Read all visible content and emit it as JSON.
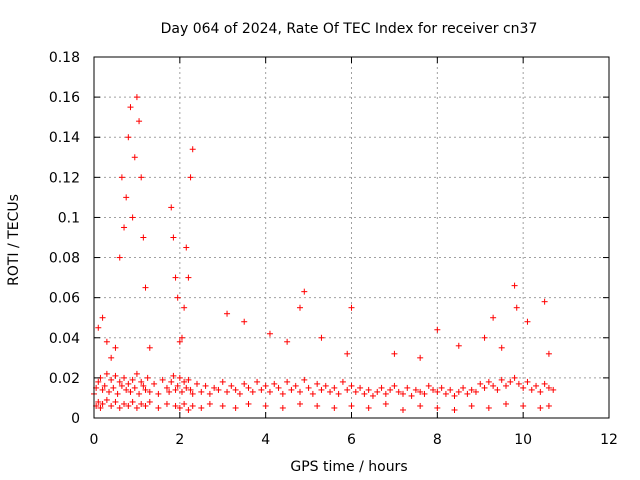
{
  "chart_data": {
    "type": "scatter",
    "title": "Day 064 of 2024, Rate Of TEC Index for receiver cn37",
    "xlabel": "GPS time / hours",
    "ylabel": "ROTI / TECUs",
    "xlim": [
      0,
      12
    ],
    "ylim": [
      0,
      0.18
    ],
    "xticks": [
      "0",
      "2",
      "4",
      "6",
      "8",
      "10",
      "12"
    ],
    "yticks": [
      "0",
      "0.02",
      "0.04",
      "0.06",
      "0.08",
      "0.1",
      "0.12",
      "0.14",
      "0.16",
      "0.18"
    ],
    "grid": true,
    "marker": "+",
    "series": [
      {
        "name": "ROTI",
        "color": "#ff0000",
        "x": [
          0.0,
          0.05,
          0.1,
          0.15,
          0.2,
          0.25,
          0.3,
          0.35,
          0.4,
          0.45,
          0.5,
          0.55,
          0.6,
          0.65,
          0.7,
          0.75,
          0.8,
          0.85,
          0.9,
          0.95,
          1.0,
          1.05,
          1.1,
          1.15,
          1.2,
          1.25,
          1.3,
          1.4,
          1.5,
          1.6,
          1.7,
          1.75,
          1.8,
          1.85,
          1.9,
          1.95,
          2.0,
          2.05,
          2.1,
          2.15,
          2.2,
          2.25,
          2.3,
          2.4,
          2.5,
          2.6,
          2.7,
          2.8,
          2.9,
          3.0,
          3.1,
          3.2,
          3.3,
          3.4,
          3.5,
          3.6,
          3.7,
          3.8,
          3.9,
          4.0,
          4.1,
          4.2,
          4.3,
          4.4,
          4.5,
          4.6,
          4.7,
          4.8,
          4.9,
          5.0,
          5.1,
          5.2,
          5.3,
          5.4,
          5.5,
          5.6,
          5.7,
          5.8,
          5.9,
          6.0,
          6.1,
          6.2,
          6.3,
          6.4,
          6.5,
          6.6,
          6.7,
          6.8,
          6.9,
          7.0,
          7.1,
          7.2,
          7.3,
          7.4,
          7.5,
          7.6,
          7.7,
          7.8,
          7.9,
          8.0,
          8.1,
          8.2,
          8.3,
          8.4,
          8.5,
          8.6,
          8.7,
          8.8,
          8.9,
          9.0,
          9.1,
          9.2,
          9.3,
          9.4,
          9.5,
          9.6,
          9.7,
          9.8,
          9.9,
          10.0,
          10.1,
          10.2,
          10.3,
          10.4,
          10.5,
          10.6,
          10.7,
          0.05,
          0.1,
          0.15,
          0.2,
          0.3,
          0.4,
          0.5,
          0.6,
          0.7,
          0.8,
          0.9,
          1.0,
          1.1,
          1.2,
          1.3,
          1.5,
          1.7,
          1.9,
          2.0,
          2.1,
          2.2,
          2.3,
          2.5,
          2.7,
          3.0,
          3.3,
          3.6,
          4.0,
          4.4,
          4.8,
          5.2,
          5.6,
          6.0,
          6.4,
          6.8,
          7.2,
          7.6,
          8.0,
          8.4,
          8.8,
          9.2,
          9.6,
          10.0,
          10.4,
          10.6,
          0.1,
          0.2,
          0.3,
          0.4,
          0.5,
          0.6,
          0.65,
          0.7,
          0.75,
          0.8,
          0.85,
          0.9,
          0.95,
          1.0,
          1.05,
          1.1,
          1.15,
          1.2,
          1.3,
          1.8,
          1.85,
          1.9,
          1.95,
          2.0,
          2.05,
          2.1,
          2.15,
          2.2,
          2.25,
          2.3,
          3.1,
          3.5,
          4.1,
          4.5,
          4.8,
          4.9,
          5.3,
          5.9,
          6.0,
          7.0,
          7.6,
          8.0,
          8.5,
          9.1,
          9.3,
          9.5,
          9.8,
          9.85,
          10.1,
          10.5,
          10.6
        ],
        "y": [
          0.012,
          0.015,
          0.018,
          0.02,
          0.014,
          0.016,
          0.022,
          0.013,
          0.019,
          0.015,
          0.021,
          0.012,
          0.018,
          0.016,
          0.02,
          0.014,
          0.017,
          0.013,
          0.019,
          0.015,
          0.022,
          0.012,
          0.018,
          0.016,
          0.014,
          0.02,
          0.013,
          0.017,
          0.012,
          0.019,
          0.015,
          0.013,
          0.018,
          0.021,
          0.014,
          0.016,
          0.02,
          0.013,
          0.018,
          0.015,
          0.019,
          0.014,
          0.012,
          0.017,
          0.013,
          0.016,
          0.012,
          0.015,
          0.014,
          0.018,
          0.013,
          0.016,
          0.014,
          0.012,
          0.017,
          0.015,
          0.013,
          0.018,
          0.014,
          0.016,
          0.013,
          0.017,
          0.015,
          0.012,
          0.018,
          0.014,
          0.016,
          0.013,
          0.019,
          0.015,
          0.012,
          0.017,
          0.014,
          0.016,
          0.013,
          0.015,
          0.012,
          0.018,
          0.014,
          0.016,
          0.013,
          0.015,
          0.012,
          0.014,
          0.011,
          0.013,
          0.015,
          0.012,
          0.014,
          0.016,
          0.013,
          0.012,
          0.015,
          0.011,
          0.014,
          0.013,
          0.012,
          0.016,
          0.014,
          0.013,
          0.015,
          0.012,
          0.014,
          0.011,
          0.013,
          0.015,
          0.012,
          0.014,
          0.013,
          0.017,
          0.015,
          0.018,
          0.016,
          0.014,
          0.019,
          0.016,
          0.018,
          0.02,
          0.017,
          0.015,
          0.018,
          0.014,
          0.016,
          0.013,
          0.017,
          0.015,
          0.014,
          0.006,
          0.008,
          0.005,
          0.007,
          0.009,
          0.006,
          0.008,
          0.005,
          0.007,
          0.006,
          0.008,
          0.005,
          0.007,
          0.006,
          0.008,
          0.005,
          0.007,
          0.006,
          0.005,
          0.007,
          0.004,
          0.006,
          0.005,
          0.007,
          0.006,
          0.005,
          0.007,
          0.006,
          0.005,
          0.007,
          0.006,
          0.005,
          0.006,
          0.005,
          0.007,
          0.004,
          0.006,
          0.005,
          0.004,
          0.006,
          0.005,
          0.007,
          0.006,
          0.005,
          0.006,
          0.045,
          0.05,
          0.038,
          0.03,
          0.035,
          0.08,
          0.12,
          0.095,
          0.11,
          0.14,
          0.155,
          0.1,
          0.13,
          0.16,
          0.148,
          0.12,
          0.09,
          0.065,
          0.035,
          0.105,
          0.09,
          0.07,
          0.06,
          0.038,
          0.04,
          0.055,
          0.085,
          0.07,
          0.12,
          0.134,
          0.052,
          0.048,
          0.042,
          0.038,
          0.055,
          0.063,
          0.04,
          0.032,
          0.055,
          0.032,
          0.03,
          0.044,
          0.036,
          0.04,
          0.05,
          0.035,
          0.066,
          0.055,
          0.048,
          0.058,
          0.032
        ]
      }
    ]
  }
}
